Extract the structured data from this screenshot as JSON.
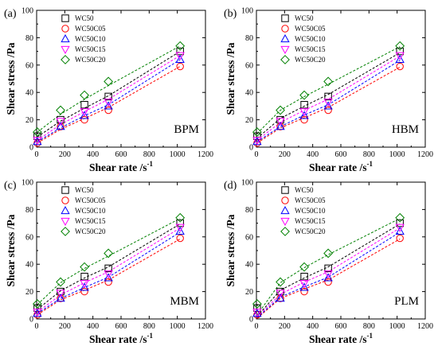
{
  "chart_data": [
    {
      "type": "scatter",
      "panel_label": "(a)",
      "model_label": "BPM",
      "xlabel": "Shear rate /s",
      "xlabel_sup": "-1",
      "ylabel": "Shear stress /Pa",
      "xlim": [
        0,
        1200
      ],
      "ylim": [
        0,
        100
      ],
      "xticks": [
        "0",
        "200",
        "400",
        "600",
        "800",
        "1000",
        "1200"
      ],
      "yticks": [
        "0",
        "20",
        "40",
        "60",
        "80",
        "100"
      ],
      "legend_position": "top-left",
      "x": [
        5,
        170,
        340,
        510,
        1020
      ],
      "series": [
        {
          "name": "WC50",
          "color": "#000000",
          "marker": "square",
          "values": [
            8,
            20,
            31,
            37,
            70
          ],
          "fit": [
            7.5,
            19,
            28.5,
            37.5,
            70
          ]
        },
        {
          "name": "WC50C05",
          "color": "#ff0000",
          "marker": "circle",
          "values": [
            3,
            15,
            20,
            27,
            59
          ],
          "fit": [
            3,
            13,
            21,
            29,
            59
          ]
        },
        {
          "name": "WC50C10",
          "color": "#0000ff",
          "marker": "triangle",
          "values": [
            4,
            15,
            23,
            30,
            64
          ],
          "fit": [
            4,
            14,
            23,
            31,
            64
          ]
        },
        {
          "name": "WC50C15",
          "color": "#ff00ff",
          "marker": "tri-down",
          "values": [
            5,
            19,
            26,
            33,
            67
          ],
          "fit": [
            5,
            16.5,
            26,
            35,
            67
          ]
        },
        {
          "name": "WC50C20",
          "color": "#008000",
          "marker": "diamond",
          "values": [
            11,
            27,
            38,
            48,
            74
          ],
          "fit": [
            11,
            24,
            35,
            45,
            74
          ]
        }
      ]
    },
    {
      "type": "scatter",
      "panel_label": "(b)",
      "model_label": "HBM",
      "xlabel": "Shear rate /s",
      "xlabel_sup": "-1",
      "ylabel": "Shear stress /Pa",
      "xlim": [
        0,
        1200
      ],
      "ylim": [
        0,
        100
      ],
      "xticks": [
        "0",
        "200",
        "400",
        "600",
        "800",
        "1000",
        "1200"
      ],
      "yticks": [
        "0",
        "20",
        "40",
        "60",
        "80",
        "100"
      ],
      "legend_position": "top-left",
      "x": [
        5,
        170,
        340,
        510,
        1020
      ],
      "series": [
        {
          "name": "WC50",
          "color": "#000000",
          "marker": "square",
          "values": [
            8,
            20,
            31,
            37,
            70
          ],
          "fit": [
            6.5,
            21,
            30,
            38.5,
            69
          ]
        },
        {
          "name": "WC50C05",
          "color": "#ff0000",
          "marker": "circle",
          "values": [
            3,
            15,
            20,
            27,
            59
          ],
          "fit": [
            3,
            14,
            21.5,
            29,
            58.5
          ]
        },
        {
          "name": "WC50C10",
          "color": "#0000ff",
          "marker": "triangle",
          "values": [
            4,
            15,
            23,
            30,
            64
          ],
          "fit": [
            4,
            15,
            23.5,
            31,
            63.5
          ]
        },
        {
          "name": "WC50C15",
          "color": "#ff00ff",
          "marker": "tri-down",
          "values": [
            5,
            19,
            26,
            33,
            67
          ],
          "fit": [
            5,
            18,
            27,
            35,
            66.5
          ]
        },
        {
          "name": "WC50C20",
          "color": "#008000",
          "marker": "diamond",
          "values": [
            11,
            27,
            38,
            48,
            74
          ],
          "fit": [
            10,
            27,
            37,
            46,
            73.5
          ]
        }
      ]
    },
    {
      "type": "scatter",
      "panel_label": "(c)",
      "model_label": "MBM",
      "xlabel": "Shear rate /s",
      "xlabel_sup": "-1",
      "ylabel": "Shear stress /Pa",
      "xlim": [
        0,
        1200
      ],
      "ylim": [
        0,
        100
      ],
      "xticks": [
        "0",
        "200",
        "400",
        "600",
        "800",
        "1000",
        "1200"
      ],
      "yticks": [
        "0",
        "20",
        "40",
        "60",
        "80",
        "100"
      ],
      "legend_position": "top-left",
      "x": [
        5,
        170,
        340,
        510,
        1020
      ],
      "series": [
        {
          "name": "WC50",
          "color": "#000000",
          "marker": "square",
          "values": [
            8,
            20,
            31,
            37,
            70
          ],
          "fit": [
            7,
            20.5,
            30,
            38,
            69.5
          ]
        },
        {
          "name": "WC50C05",
          "color": "#ff0000",
          "marker": "circle",
          "values": [
            3,
            15,
            20,
            27,
            59
          ],
          "fit": [
            3,
            14,
            21,
            28.5,
            58.5
          ]
        },
        {
          "name": "WC50C10",
          "color": "#0000ff",
          "marker": "triangle",
          "values": [
            4,
            15,
            23,
            30,
            64
          ],
          "fit": [
            4,
            15,
            23,
            30.5,
            63.5
          ]
        },
        {
          "name": "WC50C15",
          "color": "#ff00ff",
          "marker": "tri-down",
          "values": [
            5,
            19,
            26,
            33,
            67
          ],
          "fit": [
            5,
            17.5,
            26.5,
            34.5,
            66.5
          ]
        },
        {
          "name": "WC50C20",
          "color": "#008000",
          "marker": "diamond",
          "values": [
            11,
            27,
            38,
            48,
            74
          ],
          "fit": [
            10.5,
            26.5,
            37,
            46,
            73.5
          ]
        }
      ]
    },
    {
      "type": "scatter",
      "panel_label": "(d)",
      "model_label": "PLM",
      "xlabel": "Shear rate /s",
      "xlabel_sup": "-1",
      "ylabel": "Shear stress /Pa",
      "xlim": [
        0,
        1200
      ],
      "ylim": [
        0,
        100
      ],
      "xticks": [
        "0",
        "200",
        "400",
        "600",
        "800",
        "1000",
        "1200"
      ],
      "yticks": [
        "0",
        "20",
        "40",
        "60",
        "80",
        "100"
      ],
      "legend_position": "top-left",
      "x": [
        5,
        170,
        340,
        510,
        1020
      ],
      "series": [
        {
          "name": "WC50",
          "color": "#000000",
          "marker": "square",
          "values": [
            8,
            20,
            31,
            37,
            70
          ],
          "fit": [
            2,
            21,
            30,
            38,
            69.5
          ]
        },
        {
          "name": "WC50C05",
          "color": "#ff0000",
          "marker": "circle",
          "values": [
            3,
            15,
            20,
            27,
            59
          ],
          "fit": [
            0.5,
            15,
            22,
            28.5,
            58.5
          ]
        },
        {
          "name": "WC50C10",
          "color": "#0000ff",
          "marker": "triangle",
          "values": [
            4,
            15,
            23,
            30,
            64
          ],
          "fit": [
            1,
            16,
            23.5,
            30.5,
            63.5
          ]
        },
        {
          "name": "WC50C15",
          "color": "#ff00ff",
          "marker": "tri-down",
          "values": [
            5,
            19,
            26,
            33,
            67
          ],
          "fit": [
            1.5,
            18,
            27,
            34.5,
            66.5
          ]
        },
        {
          "name": "WC50C20",
          "color": "#008000",
          "marker": "diamond",
          "values": [
            11,
            27,
            38,
            48,
            74
          ],
          "fit": [
            3,
            26.5,
            37.5,
            47,
            73.5
          ]
        }
      ]
    }
  ]
}
